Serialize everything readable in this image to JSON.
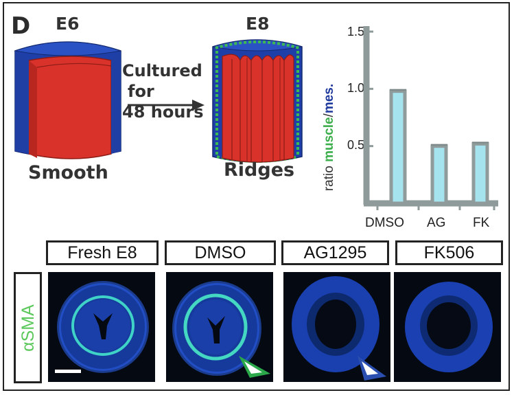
{
  "figure": {
    "panel_letter": "D",
    "stage_start": "E6",
    "stage_end": "E8",
    "culture_lines": [
      "Cultured",
      "for",
      "48 hours"
    ],
    "label_start": "Smooth",
    "label_end": "Ridges"
  },
  "chart_data": {
    "type": "bar",
    "categories": [
      "DMSO",
      "AG",
      "FK"
    ],
    "values": [
      0.98,
      0.5,
      0.52
    ],
    "ylim": [
      0,
      1.5
    ],
    "yticks": [
      "1.5",
      "1.0",
      "0.5"
    ],
    "ylabel_parts": [
      "ratio ",
      "muscle",
      "/",
      "mes."
    ],
    "ylabel_colors": [
      "#333333",
      "#3dae4c",
      "#333333",
      "#1f3a9e"
    ],
    "bar_color": "#a5e3ef",
    "bar_edge_color": "#8f9a9a",
    "axis_color": "#8f9a9a"
  },
  "images": {
    "column_labels": [
      "Fresh E8",
      "DMSO",
      "AG1295",
      "FK506"
    ],
    "row_label": "αSMA",
    "arrowhead_colors": [
      "#2aa84a",
      "#2a4fb0"
    ]
  }
}
